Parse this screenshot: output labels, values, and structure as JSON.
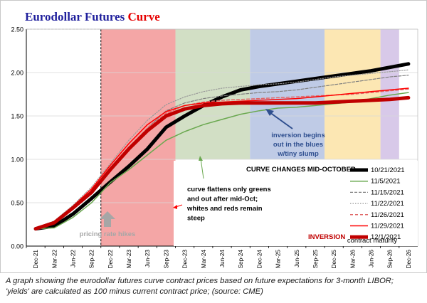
{
  "title": {
    "part1": "Eurodollar Futures ",
    "part2": "Curve"
  },
  "caption": {
    "line1": "A graph showing the eurodollar futures curve contract prices based on future expectations for 3-month LIBOR;",
    "line2": "'yields' are calculated as 100  minus current contract price; (source: CME)"
  },
  "colors": {
    "title_blue": "#1f1f9c",
    "title_red": "#e60000",
    "zone_pink": "#f4a6a6",
    "zone_green": "#d2dfc5",
    "zone_blue": "#bfcbe6",
    "zone_yellow": "#fce7b3",
    "zone_purple": "#d8c9e9"
  },
  "chart_data": {
    "type": "line",
    "categories": [
      "Dec-21",
      "Mar-22",
      "Jun-22",
      "Sep-22",
      "Dec-22",
      "Mar-23",
      "Jun-23",
      "Sep-23",
      "Dec-23",
      "Mar-24",
      "Jun-24",
      "Sep-24",
      "Dec-24",
      "Mar-25",
      "Jun-25",
      "Sep-25",
      "Dec-25",
      "Mar-26",
      "Jun-26",
      "Sep-26",
      "Dec-26"
    ],
    "ylim": [
      0,
      2.5
    ],
    "yticks": [
      "0.00",
      "0.50",
      "1.00",
      "1.50",
      "2.00",
      "2.50"
    ],
    "xlabel": "contract maturity",
    "legend_title": "CURVE CHANGES MID-OCTOBER",
    "series": [
      {
        "name": "10/21/2021",
        "color": "#000000",
        "width": 5,
        "dash": "",
        "x": [
          0,
          1,
          2,
          3,
          3.9,
          5,
          6,
          7,
          8,
          9,
          10,
          11,
          12,
          13,
          14,
          15,
          16,
          17,
          18,
          19,
          20
        ],
        "values": [
          0.2,
          0.23,
          0.37,
          0.55,
          0.72,
          0.92,
          1.12,
          1.37,
          1.5,
          1.62,
          1.72,
          1.8,
          1.84,
          1.87,
          1.9,
          1.93,
          1.96,
          1.99,
          2.02,
          2.06,
          2.1
        ]
      },
      {
        "name": "11/5/2021",
        "color": "#6aa84f",
        "width": 1.5,
        "dash": "",
        "x": [
          0,
          1,
          2,
          3,
          4,
          5,
          6,
          7,
          8,
          9,
          10,
          11,
          12,
          13,
          14,
          15,
          16,
          17,
          18,
          19,
          20
        ],
        "values": [
          0.2,
          0.21,
          0.33,
          0.5,
          0.73,
          0.88,
          1.05,
          1.22,
          1.32,
          1.4,
          1.46,
          1.52,
          1.56,
          1.59,
          1.6,
          1.62,
          1.64,
          1.66,
          1.7,
          1.74,
          1.77
        ]
      },
      {
        "name": "11/15/2021",
        "color": "#7f7f7f",
        "width": 1.2,
        "dash": "4,2",
        "x": [
          0,
          1,
          2,
          3,
          4,
          5,
          6,
          7,
          8,
          9,
          10,
          11,
          12,
          13,
          14,
          15,
          16,
          17,
          18,
          19,
          20
        ],
        "values": [
          0.2,
          0.27,
          0.44,
          0.62,
          0.89,
          1.13,
          1.36,
          1.56,
          1.65,
          1.7,
          1.73,
          1.75,
          1.77,
          1.78,
          1.8,
          1.83,
          1.86,
          1.89,
          1.92,
          1.95,
          1.97
        ]
      },
      {
        "name": "11/22/2021",
        "color": "#999999",
        "width": 1.2,
        "dash": "1.5,2",
        "x": [
          0,
          1,
          2,
          3,
          4,
          5,
          6,
          7,
          8,
          9,
          10,
          11,
          12,
          13,
          14,
          15,
          16,
          17,
          18,
          19,
          20
        ],
        "values": [
          0.21,
          0.29,
          0.47,
          0.68,
          0.95,
          1.22,
          1.45,
          1.63,
          1.72,
          1.78,
          1.82,
          1.84,
          1.86,
          1.87,
          1.89,
          1.92,
          1.95,
          1.97,
          1.99,
          2.01,
          2.03
        ]
      },
      {
        "name": "11/26/2021",
        "color": "#e06666",
        "width": 1.5,
        "dash": "4,3",
        "x": [
          0,
          1,
          2,
          3,
          4,
          5,
          6,
          7,
          8,
          9,
          10,
          11,
          12,
          13,
          14,
          15,
          16,
          17,
          18,
          19,
          20
        ],
        "values": [
          0.2,
          0.27,
          0.44,
          0.63,
          0.9,
          1.14,
          1.36,
          1.53,
          1.62,
          1.66,
          1.68,
          1.69,
          1.7,
          1.71,
          1.72,
          1.73,
          1.74,
          1.75,
          1.77,
          1.79,
          1.81
        ]
      },
      {
        "name": "11/29/2021",
        "color": "#ff0000",
        "width": 1.5,
        "dash": "",
        "x": [
          0,
          1,
          2,
          3,
          4,
          5,
          6,
          7,
          8,
          9,
          10,
          11,
          12,
          13,
          14,
          15,
          16,
          17,
          18,
          19,
          20
        ],
        "values": [
          0.2,
          0.28,
          0.46,
          0.66,
          0.93,
          1.18,
          1.4,
          1.55,
          1.62,
          1.65,
          1.66,
          1.67,
          1.68,
          1.69,
          1.7,
          1.72,
          1.74,
          1.76,
          1.78,
          1.8,
          1.82
        ]
      },
      {
        "name": "12/1/2021",
        "color": "#c00000",
        "width": 5,
        "dash": "",
        "x": [
          0,
          1,
          2,
          3,
          4,
          5,
          6,
          7,
          8,
          9,
          10,
          11,
          12,
          13,
          14,
          15,
          16,
          17,
          18,
          19,
          20
        ],
        "values": [
          0.2,
          0.27,
          0.44,
          0.62,
          0.88,
          1.12,
          1.33,
          1.5,
          1.58,
          1.62,
          1.64,
          1.65,
          1.65,
          1.65,
          1.65,
          1.65,
          1.66,
          1.67,
          1.68,
          1.69,
          1.71
        ]
      }
    ],
    "annotations": {
      "inversion_begins": [
        "inversion begins",
        "out in the blues",
        "w/tiny slump"
      ],
      "curve_flattens": [
        "curve flattens only greens",
        "and out after mid-Oct;",
        "whites and reds remain",
        "steep"
      ],
      "pricing_rate_hikes": "pricing rate hikes",
      "inversion_label": "INVERSION"
    }
  }
}
